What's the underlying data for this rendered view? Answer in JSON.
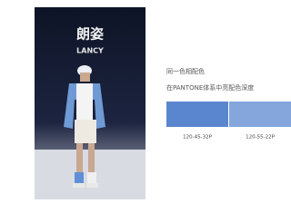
{
  "photo": {
    "brand": "朗姿",
    "brand_latin": "LANCY"
  },
  "caption": {
    "line1": "同一色相配色",
    "line2": "在PANTONE体系中亮配色深度"
  },
  "swatches": [
    {
      "label": "120-45-32P",
      "color": "#5a86cf"
    },
    {
      "label": "120-55-22P",
      "color": "#84a6dc"
    }
  ]
}
